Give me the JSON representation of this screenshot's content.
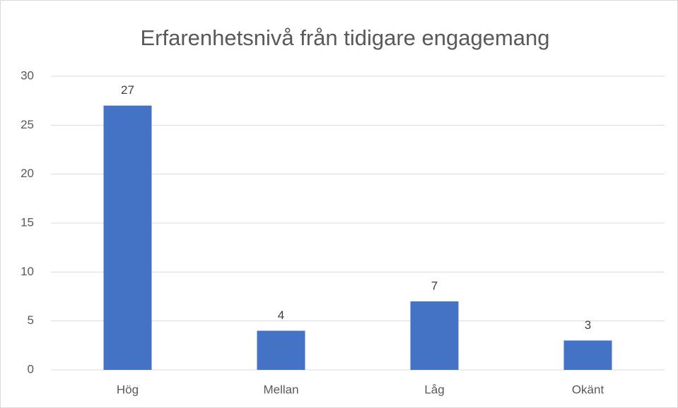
{
  "chart_data": {
    "type": "bar",
    "title": "Erfarenhetsnivå från tidigare engagemang",
    "categories": [
      "Hög",
      "Mellan",
      "Låg",
      "Okänt"
    ],
    "values": [
      27,
      4,
      7,
      3
    ],
    "color": "#4472c4",
    "ylim": [
      0,
      30
    ],
    "yticks": [
      0,
      5,
      10,
      15,
      20,
      25,
      30
    ],
    "grid": true
  }
}
